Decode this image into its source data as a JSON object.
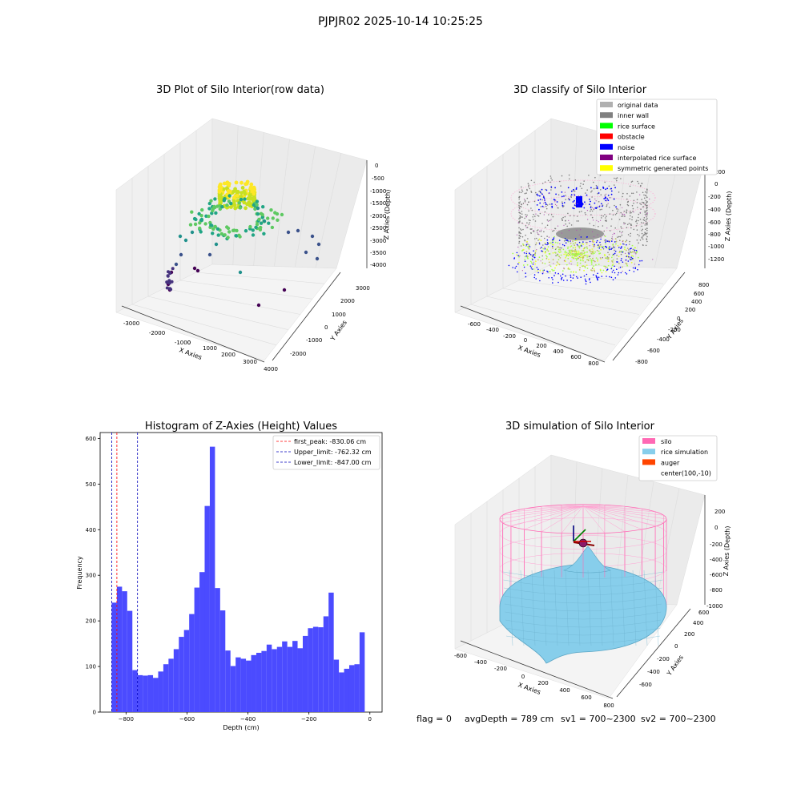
{
  "suptitle": "PJPJR02 2025-10-14 10:25:25",
  "chart_data": [
    {
      "type": "scatter",
      "panel": "3d-raw",
      "title": "3D Plot of Silo Interior(row data)",
      "xlabel": "X Axies",
      "ylabel": "Y Axies",
      "zlabel": "Z Axies (Depth)",
      "x_ticks": [
        "-3000",
        "-2000",
        "-1000",
        "0",
        "1000",
        "2000",
        "3000",
        "4000"
      ],
      "y_ticks": [
        "-2000",
        "-1000",
        "0",
        "1000",
        "2000",
        "3000"
      ],
      "z_ticks": [
        "0",
        "-500",
        "-1000",
        "-1500",
        "-2000",
        "-2500",
        "-3000",
        "-3500",
        "-4000"
      ]
    },
    {
      "type": "scatter",
      "panel": "3d-classify",
      "title": "3D classify of Silo Interior",
      "xlabel": "X Axies",
      "ylabel": "Y Axies",
      "zlabel": "Z Axies (Depth)",
      "x_ticks": [
        "-600",
        "-400",
        "-200",
        "0",
        "200",
        "400",
        "600",
        "800"
      ],
      "y_ticks": [
        "-800",
        "-600",
        "-400",
        "-200",
        "0",
        "200",
        "400",
        "600",
        "800"
      ],
      "z_ticks": [
        "200",
        "0",
        "-200",
        "-400",
        "-600",
        "-800",
        "-1000",
        "-1200"
      ],
      "legend": [
        {
          "label": "original data",
          "color": "#b0b0b0"
        },
        {
          "label": "inner wall",
          "color": "#808080"
        },
        {
          "label": "rice surface",
          "color": "#00ff00"
        },
        {
          "label": "obstacle",
          "color": "#ff0000"
        },
        {
          "label": "noise",
          "color": "#0000ff"
        },
        {
          "label": "interpolated rice surface",
          "color": "#800080"
        },
        {
          "label": "symmetric generated points",
          "color": "#ffff00"
        }
      ]
    },
    {
      "type": "bar",
      "panel": "histogram",
      "title": "Histogram of Z-Axies (Height) Values",
      "xlabel": "Depth (cm)",
      "ylabel": "Frequency",
      "xlim": [
        -885,
        40
      ],
      "ylim": [
        0,
        613
      ],
      "x_ticks": [
        -800,
        -600,
        -400,
        -200,
        0
      ],
      "y_ticks": [
        0,
        100,
        200,
        300,
        400,
        500,
        600
      ],
      "bin_start": -847,
      "bin_width": 16.94,
      "values": [
        240,
        275,
        265,
        222,
        92,
        81,
        80,
        81,
        75,
        89,
        105,
        117,
        138,
        165,
        180,
        215,
        273,
        307,
        452,
        582,
        272,
        223,
        135,
        101,
        120,
        117,
        113,
        125,
        130,
        134,
        148,
        138,
        143,
        155,
        143,
        156,
        140,
        167,
        184,
        187,
        186,
        210,
        262,
        115,
        87,
        95,
        103,
        105,
        175
      ],
      "bar_color": "#4b4bff",
      "vlines": [
        {
          "label": "first_peak: -830.06 cm",
          "x": -830.06,
          "color": "#ff0000"
        },
        {
          "label": "Upper_limit: -762.32 cm",
          "x": -762.32,
          "color": "#0000bb"
        },
        {
          "label": "Lower_limit: -847.00 cm",
          "x": -847.0,
          "color": "#0000bb"
        }
      ],
      "legend_position": "top-right"
    },
    {
      "type": "surface",
      "panel": "3d-simulation",
      "title": "3D simulation of Silo Interior",
      "xlabel": "X Axies",
      "ylabel": "Y Axies",
      "zlabel": "Z Axies (Depth)",
      "x_ticks": [
        "-600",
        "-400",
        "-200",
        "0",
        "200",
        "400",
        "600",
        "800"
      ],
      "y_ticks": [
        "-600",
        "-400",
        "-200",
        "0",
        "200",
        "400",
        "600"
      ],
      "z_ticks": [
        "200",
        "0",
        "-200",
        "-400",
        "-600",
        "-800",
        "-1000"
      ],
      "legend": [
        {
          "label": "silo",
          "color": "#ff69b4"
        },
        {
          "label": "rice simulation",
          "color": "#87ceeb"
        },
        {
          "label": "auger",
          "color": "#ff4500"
        },
        {
          "label": "center(100,-10)",
          "color": ""
        }
      ]
    }
  ],
  "status": {
    "flag": "flag = 0",
    "avg_depth": "avgDepth = 789 cm",
    "sv1": "sv1 = 700~2300",
    "sv2": "sv2 = 700~2300"
  }
}
